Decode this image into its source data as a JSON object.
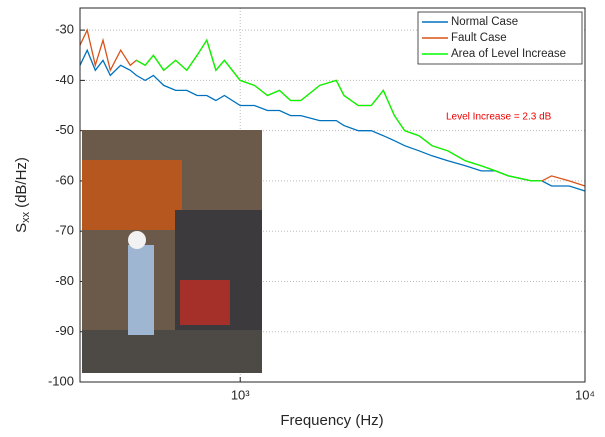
{
  "chart_data": {
    "type": "line",
    "x": [
      343,
      360,
      380,
      400,
      420,
      450,
      480,
      500,
      530,
      560,
      600,
      650,
      700,
      750,
      800,
      850,
      900,
      1000,
      1100,
      1200,
      1300,
      1400,
      1500,
      1700,
      1900,
      2000,
      2200,
      2400,
      2600,
      2800,
      3000,
      3300,
      3600,
      4000,
      4500,
      5000,
      5500,
      6000,
      7000,
      7500,
      8000,
      9000,
      10000
    ],
    "series": [
      {
        "name": "Normal Case",
        "color": "#0072bd",
        "values": [
          -37,
          -34,
          -38,
          -36,
          -39,
          -37,
          -38,
          -39,
          -40,
          -39,
          -41,
          -42,
          -42,
          -43,
          -43,
          -44,
          -43,
          -45,
          -45,
          -46,
          -46,
          -47,
          -47,
          -48,
          -48,
          -49,
          -50,
          -50,
          -51,
          -52,
          -53,
          -54,
          -55,
          -56,
          -57,
          -58,
          -58,
          -59,
          -60,
          -60,
          -61,
          -61,
          -62
        ]
      },
      {
        "name": "Fault Case",
        "color": "#d95319",
        "values": [
          -33,
          -30,
          -37,
          -32,
          -38,
          -34,
          -37,
          -36,
          -37,
          -35,
          -38,
          -36,
          -38,
          -35,
          -32,
          -38,
          -36,
          -40,
          -41,
          -43,
          -42,
          -44,
          -44,
          -41,
          -40,
          -43,
          -45,
          -45,
          -42,
          -47,
          -50,
          -51,
          -53,
          -54,
          -56,
          -57,
          -58,
          -59,
          -60,
          -60,
          -59,
          -60,
          -61
        ]
      },
      {
        "name": "Area of Level Increase",
        "color": "#00ff00",
        "values": [
          null,
          null,
          null,
          null,
          null,
          null,
          null,
          -36,
          -37,
          -35,
          -38,
          -36,
          -38,
          -35,
          -32,
          -38,
          -36,
          -40,
          -41,
          -43,
          -42,
          -44,
          -44,
          -41,
          -40,
          -43,
          -45,
          -45,
          -42,
          -47,
          -50,
          -51,
          -53,
          -54,
          -56,
          -57,
          -58,
          -59,
          -60,
          -60,
          null,
          null,
          null
        ]
      }
    ],
    "x_label": "Frequency (Hz)",
    "y_label": {
      "base": "S",
      "sub": "xx",
      "unit": "(dB/Hz)"
    },
    "annotation": "Level Increase = 2.3 dB",
    "log_x": true,
    "xlim": [
      343,
      10000
    ],
    "xticks": [
      {
        "value": 1000,
        "label": "10³"
      },
      {
        "value": 10000,
        "label": "10⁴"
      }
    ],
    "ylim": [
      -100,
      -25.6
    ],
    "yticks": [
      -100,
      -90,
      -80,
      -70,
      -60,
      -50,
      -40,
      -30
    ],
    "grid": true,
    "legend": "top-right"
  }
}
